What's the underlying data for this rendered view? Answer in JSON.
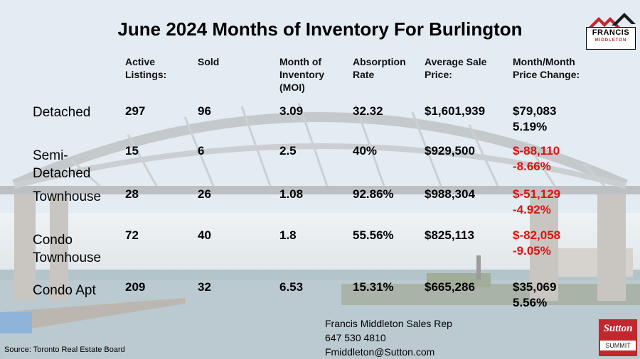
{
  "title": "June 2024 Months of Inventory For Burlington",
  "headers": {
    "active": [
      "Active",
      "Listings:"
    ],
    "sold": [
      "Sold"
    ],
    "moi": [
      "Month of",
      "Inventory",
      "(MOI)"
    ],
    "absorption": [
      "Absorption",
      "Rate"
    ],
    "avg_price": [
      "Average Sale",
      "Price:"
    ],
    "price_change": [
      "Month/Month",
      "Price Change:"
    ]
  },
  "rows": [
    {
      "label": [
        "Detached"
      ],
      "active": "297",
      "sold": "96",
      "moi": "3.09",
      "absorption": "32.32",
      "avg_price": "$1,601,939",
      "change_amount": "$79,083",
      "change_pct": "5.19%",
      "negative": false
    },
    {
      "label": [
        "Semi-",
        "Detached"
      ],
      "active": "15",
      "sold": "6",
      "moi": "2.5",
      "absorption": "40%",
      "avg_price": "$929,500",
      "change_amount": "$-88,110",
      "change_pct": "-8.66%",
      "negative": true
    },
    {
      "label": [
        "Townhouse"
      ],
      "active": "28",
      "sold": "26",
      "moi": "1.08",
      "absorption": "92.86%",
      "avg_price": "$988,304",
      "change_amount": "$-51,129",
      "change_pct": "-4.92%",
      "negative": true
    },
    {
      "label": [
        "Condo",
        "Townhouse"
      ],
      "active": "72",
      "sold": "40",
      "moi": "1.8",
      "absorption": "55.56%",
      "avg_price": "$825,113",
      "change_amount": "$-82,058",
      "change_pct": "-9.05%",
      "negative": true
    },
    {
      "label": [
        "Condo Apt"
      ],
      "active": "209",
      "sold": "32",
      "moi": "6.53",
      "absorption": "15.31%",
      "avg_price": "$665,286",
      "change_amount": "$35,069",
      "change_pct": "5.56%",
      "negative": false
    }
  ],
  "contact": {
    "name": "Francis Middleton Sales Rep",
    "phone": "647 530 4810",
    "email": "Fmiddleton@Sutton.com"
  },
  "source": "Source: Toronto Real Estate Board",
  "logo_francis": {
    "line1": "FRANCIS",
    "line2": "MIDDLETON"
  },
  "logo_sutton": {
    "line1": "Sutton",
    "line2": "SUMMIT"
  },
  "colors": {
    "negative": "#e01010",
    "brand_red": "#c1272d"
  }
}
